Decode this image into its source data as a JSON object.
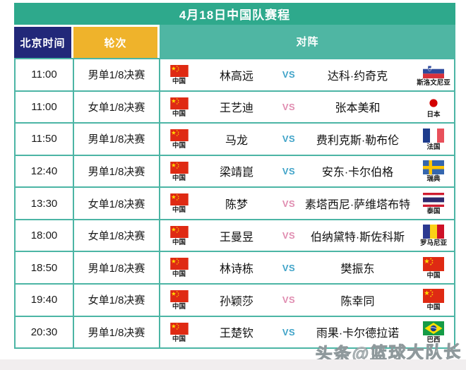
{
  "banner": {
    "title": "4月18日中国队赛程"
  },
  "columns": {
    "time": "北京时间",
    "round": "轮次",
    "matchup": "对阵"
  },
  "colors": {
    "banner_bg": "#2EA98C",
    "time_header_bg": "#222879",
    "round_header_bg": "#EFB32B",
    "matchup_header_bg": "#4FB6A3",
    "grid_border": "#4CB5A5",
    "vs_male": "#3FA3C8",
    "vs_female": "#E08CB0"
  },
  "rows": [
    {
      "time": "11:00",
      "round": "男单1/8决赛",
      "gender": "m",
      "player": "林高远",
      "player_country": "中国",
      "player_flag": "cn",
      "vs": "VS",
      "opponent": "达科·约奇克",
      "opponent_country": "斯洛文尼亚",
      "opponent_flag": "si"
    },
    {
      "time": "11:00",
      "round": "女单1/8决赛",
      "gender": "f",
      "player": "王艺迪",
      "player_country": "中国",
      "player_flag": "cn",
      "vs": "VS",
      "opponent": "张本美和",
      "opponent_country": "日本",
      "opponent_flag": "jp"
    },
    {
      "time": "11:50",
      "round": "男单1/8决赛",
      "gender": "m",
      "player": "马龙",
      "player_country": "中国",
      "player_flag": "cn",
      "vs": "VS",
      "opponent": "费利克斯·勒布伦",
      "opponent_country": "法国",
      "opponent_flag": "fr"
    },
    {
      "time": "12:40",
      "round": "男单1/8决赛",
      "gender": "m",
      "player": "梁靖崑",
      "player_country": "中国",
      "player_flag": "cn",
      "vs": "VS",
      "opponent": "安东·卡尔伯格",
      "opponent_country": "瑞典",
      "opponent_flag": "se"
    },
    {
      "time": "13:30",
      "round": "女单1/8决赛",
      "gender": "f",
      "player": "陈梦",
      "player_country": "中国",
      "player_flag": "cn",
      "vs": "VS",
      "opponent": "素塔西尼·萨维塔布特",
      "opponent_country": "泰国",
      "opponent_flag": "th"
    },
    {
      "time": "18:00",
      "round": "女单1/8决赛",
      "gender": "f",
      "player": "王曼昱",
      "player_country": "中国",
      "player_flag": "cn",
      "vs": "VS",
      "opponent": "伯纳黛特·斯佐科斯",
      "opponent_country": "罗马尼亚",
      "opponent_flag": "ro"
    },
    {
      "time": "18:50",
      "round": "男单1/8决赛",
      "gender": "m",
      "player": "林诗栋",
      "player_country": "中国",
      "player_flag": "cn",
      "vs": "VS",
      "opponent": "樊振东",
      "opponent_country": "中国",
      "opponent_flag": "cn"
    },
    {
      "time": "19:40",
      "round": "女单1/8决赛",
      "gender": "f",
      "player": "孙颖莎",
      "player_country": "中国",
      "player_flag": "cn",
      "vs": "VS",
      "opponent": "陈幸同",
      "opponent_country": "中国",
      "opponent_flag": "cn"
    },
    {
      "time": "20:30",
      "round": "男单1/8决赛",
      "gender": "m",
      "player": "王楚钦",
      "player_country": "中国",
      "player_flag": "cn",
      "vs": "VS",
      "opponent": "雨果·卡尔德拉诺",
      "opponent_country": "巴西",
      "opponent_flag": "br"
    }
  ],
  "watermark": "头条@篮球大队长"
}
